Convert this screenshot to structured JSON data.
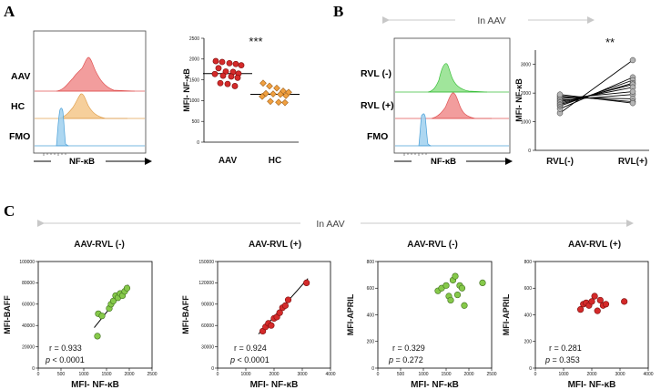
{
  "panels": {
    "A": {
      "letter": "A",
      "histogram": {
        "rows": [
          "AAV",
          "HC",
          "FMO"
        ],
        "xlabel": "NF-κB",
        "colors": [
          "#f08c8c",
          "#f5c78a",
          "#9fd0ef"
        ]
      }
    },
    "B": {
      "letter": "B",
      "header": "In AAV",
      "histogram": {
        "rows": [
          "RVL (-)",
          "RVL (+)",
          "FMO"
        ],
        "xlabel": "NF-κB",
        "colors": [
          "#8fe08a",
          "#f08c8c",
          "#9fd0ef"
        ]
      }
    },
    "C": {
      "letter": "C",
      "header": "In AAV"
    }
  },
  "chart_data": [
    {
      "id": "A-dot",
      "type": "scatter",
      "ylabel": "MFI- NF-κB",
      "categories": [
        "AAV",
        "HC"
      ],
      "ylim": [
        0,
        2500
      ],
      "yticks": [
        0,
        500,
        1000,
        1500,
        2000,
        2500
      ],
      "significance": "***",
      "series": [
        {
          "name": "AAV",
          "color": "#d42a2a",
          "marker": "circle",
          "median": 1650,
          "values": [
            1950,
            1930,
            1900,
            1880,
            1850,
            1780,
            1700,
            1690,
            1650,
            1640,
            1600,
            1580,
            1550,
            1420,
            1400,
            1350
          ]
        },
        {
          "name": "HC",
          "color": "#f0a040",
          "marker": "diamond",
          "median": 1150,
          "values": [
            1420,
            1350,
            1300,
            1230,
            1200,
            1170,
            1160,
            1150,
            1120,
            1100,
            980,
            960,
            950
          ]
        }
      ]
    },
    {
      "id": "B-paired",
      "type": "line",
      "ylabel": "MFI- NF-κB",
      "categories": [
        "RVL(-)",
        "RVL(+)"
      ],
      "ylim": [
        0,
        3500
      ],
      "yticks": [
        0,
        1000,
        2000,
        3000
      ],
      "significance": "**",
      "pairs": [
        [
          1300,
          3150
        ],
        [
          1450,
          2550
        ],
        [
          1550,
          2450
        ],
        [
          1600,
          2350
        ],
        [
          1650,
          2300
        ],
        [
          1700,
          2200
        ],
        [
          1750,
          1950
        ],
        [
          1800,
          2050
        ],
        [
          1850,
          1800
        ],
        [
          1900,
          1700
        ],
        [
          1950,
          1650
        ]
      ]
    },
    {
      "id": "C1",
      "type": "scatter",
      "title": "AAV-RVL (-)",
      "xlabel": "MFI- NF-κB",
      "ylabel": "MFI-BAFF",
      "xlim": [
        0,
        2500
      ],
      "xticks": [
        0,
        500,
        1000,
        1500,
        2000,
        2500
      ],
      "ylim": [
        0,
        100000
      ],
      "yticks": [
        0,
        20000,
        40000,
        60000,
        80000,
        100000
      ],
      "color": "#86c94a",
      "stats": {
        "r": "r = 0.933",
        "p": "< 0.0001"
      },
      "fit": [
        [
          1230,
          38000
        ],
        [
          1980,
          78000
        ]
      ],
      "x": [
        1300,
        1320,
        1400,
        1560,
        1600,
        1650,
        1700,
        1750,
        1800,
        1850,
        1900,
        1950
      ],
      "y": [
        30000,
        51000,
        49000,
        56000,
        60000,
        63000,
        68000,
        66000,
        70000,
        68000,
        72000,
        75000
      ]
    },
    {
      "id": "C2",
      "type": "scatter",
      "title": "AAV-RVL (+)",
      "xlabel": "MFI- NF-κB",
      "ylabel": "MFI-BAFF",
      "xlim": [
        0,
        4000
      ],
      "xticks": [
        0,
        1000,
        2000,
        3000,
        4000
      ],
      "ylim": [
        0,
        150000
      ],
      "yticks": [
        0,
        30000,
        60000,
        90000,
        120000,
        150000
      ],
      "color": "#d42a2a",
      "stats": {
        "r": "r = 0.924",
        "p": "< 0.0001"
      },
      "fit": [
        [
          1450,
          48000
        ],
        [
          3200,
          126000
        ]
      ],
      "x": [
        1600,
        1700,
        1800,
        1900,
        2000,
        2100,
        2200,
        2300,
        2400,
        2500,
        3150
      ],
      "y": [
        52000,
        58000,
        63000,
        60000,
        70000,
        72000,
        78000,
        85000,
        88000,
        96000,
        120000
      ]
    },
    {
      "id": "C3",
      "type": "scatter",
      "title": "AAV-RVL (-)",
      "xlabel": "MFI- NF-κB",
      "ylabel": "MFI-APRIL",
      "xlim": [
        0,
        2500
      ],
      "xticks": [
        0,
        500,
        1000,
        1500,
        2000,
        2500
      ],
      "ylim": [
        0,
        800
      ],
      "yticks": [
        0,
        200,
        400,
        600,
        800
      ],
      "color": "#86c94a",
      "stats": {
        "r": "r = 0.329",
        "p": "= 0.272"
      },
      "x": [
        1320,
        1400,
        1500,
        1560,
        1600,
        1650,
        1700,
        1750,
        1800,
        1850,
        1900,
        2300
      ],
      "y": [
        580,
        600,
        620,
        540,
        510,
        660,
        690,
        550,
        620,
        600,
        470,
        640
      ]
    },
    {
      "id": "C4",
      "type": "scatter",
      "title": "AAV-RVL (+)",
      "xlabel": "MFI- NF-κB",
      "ylabel": "MFI-APRIL",
      "xlim": [
        0,
        4000
      ],
      "xticks": [
        0,
        1000,
        2000,
        3000,
        4000
      ],
      "ylim": [
        0,
        800
      ],
      "yticks": [
        0,
        200,
        400,
        600,
        800
      ],
      "color": "#d42a2a",
      "stats": {
        "r": "r = 0.281",
        "p": "= 0.353"
      },
      "x": [
        1600,
        1700,
        1800,
        1900,
        2000,
        2100,
        2200,
        2300,
        2400,
        2500,
        3150
      ],
      "y": [
        440,
        480,
        490,
        470,
        500,
        540,
        430,
        510,
        470,
        480,
        500
      ]
    }
  ]
}
